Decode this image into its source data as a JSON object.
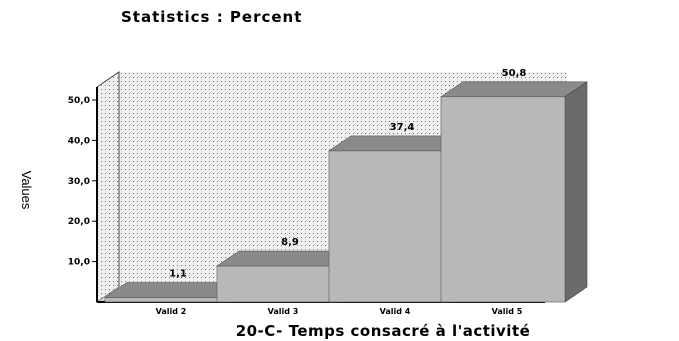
{
  "chart_data": {
    "type": "bar",
    "title": "Statistics : Percent",
    "xlabel": "20-C- Temps consacré à l'activité",
    "ylabel": "Values",
    "categories": [
      "Valid 2",
      "Valid 3",
      "Valid 4",
      "Valid 5"
    ],
    "values": [
      1.1,
      8.9,
      37.4,
      50.8
    ],
    "data_labels": [
      "1,1",
      "8,9",
      "37,4",
      "50,8"
    ],
    "y_ticks": [
      "10,0",
      "20,0",
      "30,0",
      "40,0",
      "50,0"
    ],
    "y_tick_values": [
      10,
      20,
      30,
      40,
      50
    ],
    "ylim": [
      0,
      50
    ],
    "grid": "dotted",
    "style": "3d",
    "colors": {
      "bar_front": "#b8b8b8",
      "bar_top": "#8a8a8a",
      "bar_side": "#6a6a6a",
      "wall": "#eeeeee",
      "floor": "#d2d2d2"
    }
  }
}
